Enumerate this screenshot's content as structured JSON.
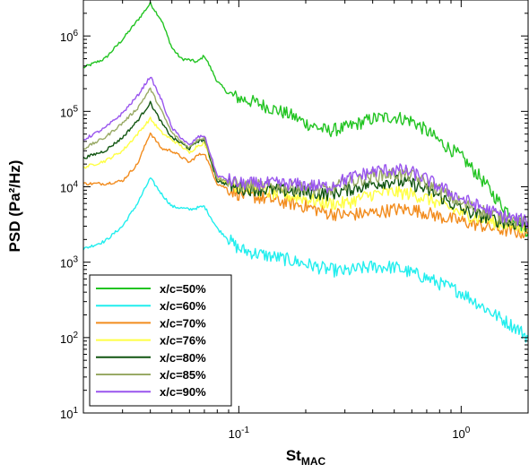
{
  "chart_data": {
    "type": "line",
    "xscale": "log",
    "yscale": "log",
    "xlim": [
      0.02,
      2.0
    ],
    "ylim": [
      10,
      3000000
    ],
    "xlabel_main": "St",
    "xlabel_sub": "MAC",
    "ylabel": "PSD (Pa²/Hz)",
    "grid": false,
    "legend_position": "bottom-left",
    "xticks": [
      {
        "value": 0.1,
        "base": "10",
        "exp": "-1"
      },
      {
        "value": 1.0,
        "base": "10",
        "exp": "0"
      }
    ],
    "yticks": [
      {
        "value": 10,
        "base": "10",
        "exp": "1"
      },
      {
        "value": 100,
        "base": "10",
        "exp": "2"
      },
      {
        "value": 1000,
        "base": "10",
        "exp": "3"
      },
      {
        "value": 10000,
        "base": "10",
        "exp": "4"
      },
      {
        "value": 100000,
        "base": "10",
        "exp": "5"
      },
      {
        "value": 1000000,
        "base": "10",
        "exp": "6"
      }
    ],
    "series": [
      {
        "name": "x/c=50%",
        "color": "#22c422",
        "points": [
          [
            0.02,
            380000
          ],
          [
            0.025,
            500000
          ],
          [
            0.03,
            900000
          ],
          [
            0.035,
            1600000
          ],
          [
            0.04,
            2700000
          ],
          [
            0.045,
            1600000
          ],
          [
            0.05,
            700000
          ],
          [
            0.055,
            500000
          ],
          [
            0.06,
            480000
          ],
          [
            0.065,
            450000
          ],
          [
            0.07,
            550000
          ],
          [
            0.08,
            250000
          ],
          [
            0.09,
            170000
          ],
          [
            0.1,
            150000
          ],
          [
            0.12,
            130000
          ],
          [
            0.14,
            110000
          ],
          [
            0.17,
            90000
          ],
          [
            0.2,
            70000
          ],
          [
            0.25,
            55000
          ],
          [
            0.3,
            60000
          ],
          [
            0.35,
            70000
          ],
          [
            0.4,
            80000
          ],
          [
            0.5,
            85000
          ],
          [
            0.6,
            75000
          ],
          [
            0.7,
            55000
          ],
          [
            0.8,
            40000
          ],
          [
            1.0,
            25000
          ],
          [
            1.2,
            14000
          ],
          [
            1.5,
            6000
          ],
          [
            1.8,
            3500
          ],
          [
            2.0,
            2500
          ]
        ]
      },
      {
        "name": "x/c=60%",
        "color": "#22eeee",
        "points": [
          [
            0.02,
            1500
          ],
          [
            0.025,
            1900
          ],
          [
            0.03,
            3000
          ],
          [
            0.035,
            6000
          ],
          [
            0.04,
            13000
          ],
          [
            0.045,
            8000
          ],
          [
            0.05,
            5500
          ],
          [
            0.06,
            5000
          ],
          [
            0.07,
            5500
          ],
          [
            0.08,
            2800
          ],
          [
            0.09,
            2000
          ],
          [
            0.1,
            1500
          ],
          [
            0.12,
            1300
          ],
          [
            0.15,
            1150
          ],
          [
            0.2,
            950
          ],
          [
            0.25,
            800
          ],
          [
            0.3,
            750
          ],
          [
            0.35,
            820
          ],
          [
            0.4,
            870
          ],
          [
            0.5,
            860
          ],
          [
            0.6,
            720
          ],
          [
            0.7,
            620
          ],
          [
            0.8,
            520
          ],
          [
            1.0,
            400
          ],
          [
            1.2,
            280
          ],
          [
            1.5,
            180
          ],
          [
            1.8,
            130
          ],
          [
            2.0,
            100
          ]
        ]
      },
      {
        "name": "x/c=70%",
        "color": "#f28c1e",
        "points": [
          [
            0.02,
            11000
          ],
          [
            0.025,
            11000
          ],
          [
            0.03,
            12000
          ],
          [
            0.035,
            20000
          ],
          [
            0.04,
            52000
          ],
          [
            0.045,
            32000
          ],
          [
            0.05,
            30000
          ],
          [
            0.055,
            25000
          ],
          [
            0.06,
            21000
          ],
          [
            0.065,
            26000
          ],
          [
            0.07,
            28000
          ],
          [
            0.08,
            11000
          ],
          [
            0.1,
            8000
          ],
          [
            0.15,
            6500
          ],
          [
            0.2,
            5500
          ],
          [
            0.25,
            4500
          ],
          [
            0.3,
            4200
          ],
          [
            0.4,
            4500
          ],
          [
            0.5,
            5000
          ],
          [
            0.6,
            5000
          ],
          [
            0.7,
            4500
          ],
          [
            0.8,
            4000
          ],
          [
            1.0,
            3500
          ],
          [
            1.2,
            3100
          ],
          [
            1.5,
            2700
          ],
          [
            2.0,
            2400
          ]
        ]
      },
      {
        "name": "x/c=76%",
        "color": "#ffff44",
        "points": [
          [
            0.02,
            18000
          ],
          [
            0.025,
            22000
          ],
          [
            0.03,
            30000
          ],
          [
            0.035,
            50000
          ],
          [
            0.04,
            80000
          ],
          [
            0.045,
            52000
          ],
          [
            0.05,
            42000
          ],
          [
            0.055,
            35000
          ],
          [
            0.06,
            28000
          ],
          [
            0.065,
            35000
          ],
          [
            0.07,
            38000
          ],
          [
            0.08,
            13000
          ],
          [
            0.1,
            10000
          ],
          [
            0.15,
            8000
          ],
          [
            0.2,
            7000
          ],
          [
            0.25,
            6000
          ],
          [
            0.3,
            6000
          ],
          [
            0.4,
            8000
          ],
          [
            0.5,
            8500
          ],
          [
            0.6,
            8000
          ],
          [
            0.7,
            7000
          ],
          [
            0.8,
            6000
          ],
          [
            1.0,
            4500
          ],
          [
            1.2,
            3800
          ],
          [
            1.5,
            3200
          ],
          [
            2.0,
            2800
          ]
        ]
      },
      {
        "name": "x/c=80%",
        "color": "#115511",
        "points": [
          [
            0.02,
            24000
          ],
          [
            0.025,
            30000
          ],
          [
            0.03,
            45000
          ],
          [
            0.035,
            75000
          ],
          [
            0.04,
            130000
          ],
          [
            0.045,
            70000
          ],
          [
            0.05,
            45000
          ],
          [
            0.055,
            38000
          ],
          [
            0.06,
            32000
          ],
          [
            0.065,
            40000
          ],
          [
            0.07,
            42000
          ],
          [
            0.08,
            12000
          ],
          [
            0.1,
            9500
          ],
          [
            0.15,
            9000
          ],
          [
            0.2,
            8500
          ],
          [
            0.25,
            8000
          ],
          [
            0.3,
            9000
          ],
          [
            0.4,
            11000
          ],
          [
            0.5,
            12000
          ],
          [
            0.6,
            11000
          ],
          [
            0.7,
            9000
          ],
          [
            0.8,
            7500
          ],
          [
            1.0,
            5000
          ],
          [
            1.2,
            4200
          ],
          [
            1.5,
            3500
          ],
          [
            2.0,
            3000
          ]
        ]
      },
      {
        "name": "x/c=85%",
        "color": "#99aa66",
        "points": [
          [
            0.02,
            32000
          ],
          [
            0.025,
            45000
          ],
          [
            0.03,
            70000
          ],
          [
            0.035,
            110000
          ],
          [
            0.04,
            200000
          ],
          [
            0.045,
            100000
          ],
          [
            0.05,
            52000
          ],
          [
            0.055,
            40000
          ],
          [
            0.06,
            33000
          ],
          [
            0.065,
            42000
          ],
          [
            0.07,
            45000
          ],
          [
            0.08,
            13000
          ],
          [
            0.1,
            10500
          ],
          [
            0.15,
            10000
          ],
          [
            0.2,
            9500
          ],
          [
            0.25,
            9000
          ],
          [
            0.3,
            11000
          ],
          [
            0.4,
            14000
          ],
          [
            0.5,
            15000
          ],
          [
            0.6,
            14000
          ],
          [
            0.7,
            11000
          ],
          [
            0.8,
            9000
          ],
          [
            1.0,
            6000
          ],
          [
            1.2,
            5000
          ],
          [
            1.5,
            4000
          ],
          [
            2.0,
            3200
          ]
        ]
      },
      {
        "name": "x/c=90%",
        "color": "#9955ee",
        "points": [
          [
            0.02,
            42000
          ],
          [
            0.025,
            60000
          ],
          [
            0.03,
            95000
          ],
          [
            0.035,
            160000
          ],
          [
            0.04,
            290000
          ],
          [
            0.045,
            140000
          ],
          [
            0.05,
            60000
          ],
          [
            0.055,
            45000
          ],
          [
            0.06,
            35000
          ],
          [
            0.065,
            45000
          ],
          [
            0.07,
            48000
          ],
          [
            0.08,
            14000
          ],
          [
            0.1,
            11000
          ],
          [
            0.15,
            11000
          ],
          [
            0.2,
            10500
          ],
          [
            0.25,
            10000
          ],
          [
            0.3,
            12500
          ],
          [
            0.4,
            16000
          ],
          [
            0.5,
            17000
          ],
          [
            0.6,
            15500
          ],
          [
            0.7,
            12500
          ],
          [
            0.8,
            10000
          ],
          [
            1.0,
            7000
          ],
          [
            1.2,
            5500
          ],
          [
            1.5,
            4200
          ],
          [
            2.0,
            3400
          ]
        ]
      }
    ]
  }
}
